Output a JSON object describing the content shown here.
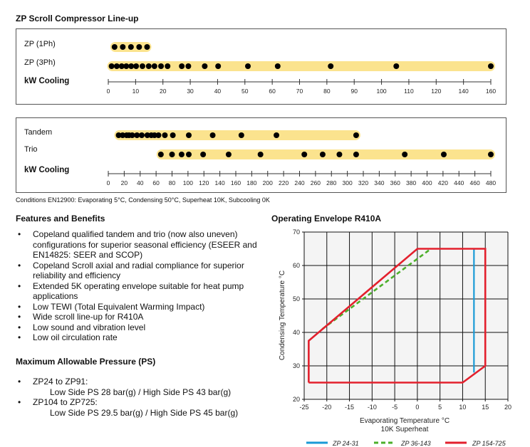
{
  "title": "ZP Scroll Compressor Line-up",
  "colors": {
    "band": "#fbe38e",
    "dot": "#000000",
    "zp24_31": "#1a9ad6",
    "zp36_143": "#4caf2a",
    "zp154_725": "#e3202d",
    "plot_bg": "#f4f4f4"
  },
  "chart_data": [
    {
      "type": "scatter",
      "title": "",
      "xlabel": "kW Cooling",
      "xticks": [
        0,
        10,
        20,
        30,
        40,
        50,
        60,
        70,
        80,
        90,
        100,
        110,
        120,
        140,
        160
      ],
      "series": [
        {
          "name": "ZP (1Ph)",
          "values": [
            2.3,
            5.3,
            8.3,
            11.3,
            14.2
          ]
        },
        {
          "name": "ZP (3Ph)",
          "values": [
            1.2,
            3.1,
            4.9,
            6.6,
            8.4,
            10.2,
            12.5,
            14.8,
            16.9,
            19.3,
            21.7,
            26.9,
            29.3,
            35.3,
            40.2,
            51.1,
            62,
            81.4,
            105.4,
            160
          ]
        }
      ]
    },
    {
      "type": "scatter",
      "title": "",
      "xlabel": "kW Cooling",
      "xticks": [
        0,
        20,
        40,
        60,
        80,
        100,
        120,
        140,
        160,
        180,
        200,
        220,
        240,
        260,
        280,
        300,
        320,
        340,
        360,
        380,
        400,
        420,
        440,
        460,
        480
      ],
      "series": [
        {
          "name": "Tandem",
          "values": [
            13,
            18,
            23,
            26,
            30,
            36,
            42,
            49,
            54,
            58,
            63,
            71,
            81,
            101,
            131,
            167,
            211,
            311
          ]
        },
        {
          "name": "Trio",
          "values": [
            66,
            80,
            92,
            101,
            119,
            151,
            191,
            246,
            269,
            290,
            311,
            372,
            421,
            480
          ]
        }
      ]
    },
    {
      "type": "line",
      "title": "Operating Envelope R410A",
      "xlabel": "Evaporating Temperature °C",
      "xlabel2": "10K Superheat",
      "ylabel": "Condensing Temperature °C",
      "xlim": [
        -25,
        20
      ],
      "ylim": [
        20,
        70
      ],
      "xticks": [
        -25,
        -20,
        -15,
        -10,
        -5,
        0,
        5,
        10,
        15,
        20
      ],
      "yticks": [
        20,
        30,
        40,
        50,
        60,
        70
      ],
      "grid": true,
      "legend": "bottom",
      "series": [
        {
          "name": "ZP 24-31",
          "style": "solid",
          "points": [
            [
              12.5,
              65
            ],
            [
              12.5,
              28
            ]
          ]
        },
        {
          "name": "ZP 36-143",
          "style": "dashed",
          "points": [
            [
              -21,
              41
            ],
            [
              3,
              65
            ]
          ]
        },
        {
          "name": "ZP 154-725",
          "style": "solid",
          "points": [
            [
              -24,
              25
            ],
            [
              10,
              25
            ],
            [
              15,
              30
            ],
            [
              15,
              65
            ],
            [
              0,
              65
            ],
            [
              -24,
              37.5
            ],
            [
              -24,
              25
            ]
          ]
        }
      ]
    }
  ],
  "conditions": "Conditions EN12900: Evaporating 5°C, Condensing 50°C, Superheat 10K, Subcooling 0K",
  "features": {
    "heading": "Features and Benefits",
    "bullet": "•",
    "items": [
      [
        "Copeland qualified tandem and trio (now also uneven)",
        "configurations for superior seasonal efficiency (ESEER and",
        "EN14825: SEER and SCOP)"
      ],
      [
        "Copeland Scroll axial and radial compliance for superior",
        "reliability and efficiency"
      ],
      [
        "Extended 5K operating envelope suitable for heat pump",
        "applications"
      ],
      [
        "Low TEWI (Total Equivalent Warming Impact)"
      ],
      [
        "Wide scroll line-up for R410A"
      ],
      [
        "Low sound and vibration level"
      ],
      [
        "Low oil circulation rate"
      ]
    ]
  },
  "pressure": {
    "heading": "Maximum Allowable Pressure (PS)",
    "items": [
      {
        "model": "ZP24 to ZP91:",
        "value": "Low Side PS 28 bar(g) / High Side PS 43 bar(g)"
      },
      {
        "model": "ZP104 to ZP725:",
        "value": "Low Side PS 29.5 bar(g) / High Side PS 45 bar(g)"
      }
    ]
  }
}
